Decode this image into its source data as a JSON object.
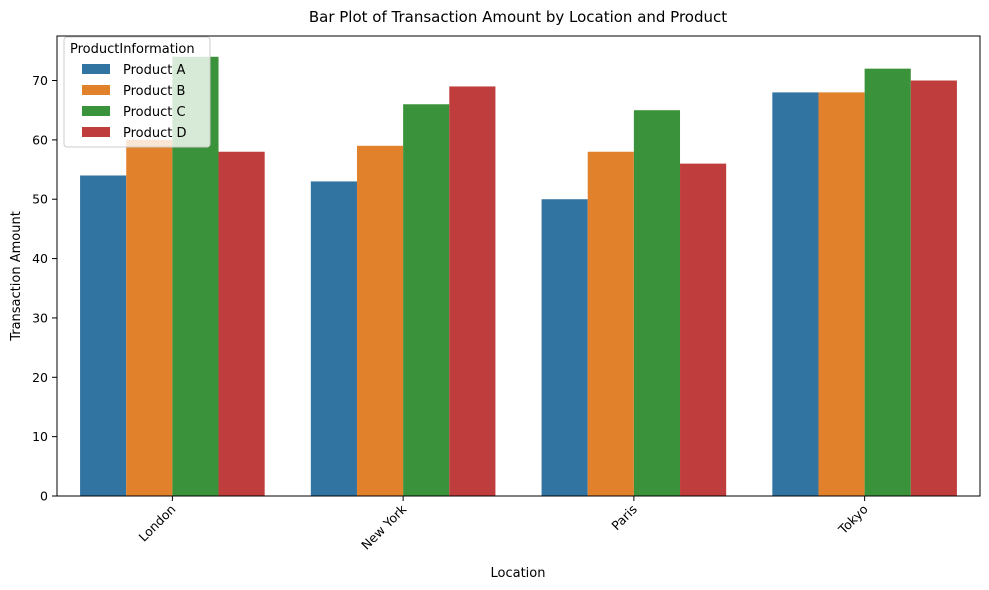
{
  "chart_data": {
    "type": "bar",
    "title": "Bar Plot of Transaction Amount by Location and Product",
    "xlabel": "Location",
    "ylabel": "Transaction Amount",
    "categories": [
      "London",
      "New York",
      "Paris",
      "Tokyo"
    ],
    "ylim": [
      0,
      77.5
    ],
    "yticks": [
      0,
      10,
      20,
      30,
      40,
      50,
      60,
      70
    ],
    "legend": {
      "title": "ProductInformation",
      "placement": "top-left"
    },
    "series": [
      {
        "name": "Product A",
        "color": "#3274a1",
        "values": [
          54,
          53,
          50,
          68
        ]
      },
      {
        "name": "Product B",
        "color": "#e1812c",
        "values": [
          60,
          59,
          58,
          68
        ]
      },
      {
        "name": "Product C",
        "color": "#3a923a",
        "values": [
          74,
          66,
          65,
          72
        ]
      },
      {
        "name": "Product D",
        "color": "#c03d3e",
        "values": [
          58,
          69,
          56,
          70
        ]
      }
    ],
    "grid": false
  }
}
